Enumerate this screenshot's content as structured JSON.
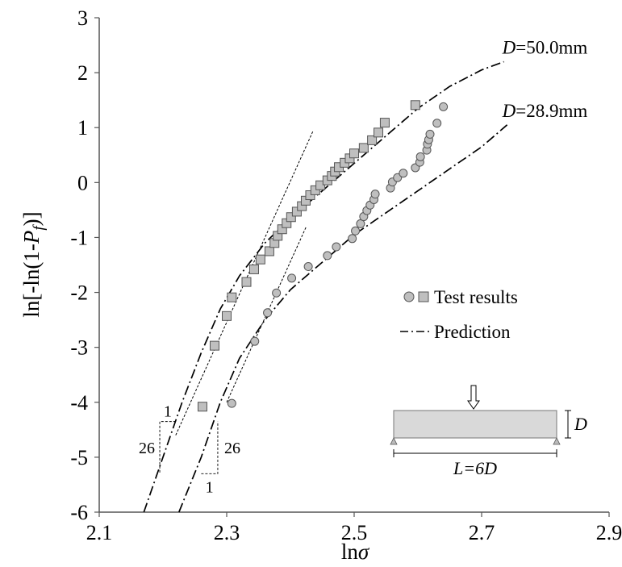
{
  "chart_data": {
    "type": "scatter",
    "xlabel": {
      "prefix": "ln",
      "symbol": "σ"
    },
    "ylabel": {
      "pre": "ln[-ln(1-",
      "var": "P",
      "sub": "f",
      "post": ")]"
    },
    "xlim": [
      2.1,
      2.9
    ],
    "ylim": [
      -6,
      3
    ],
    "x_ticks": [
      "2.1",
      "2.3",
      "2.5",
      "2.7",
      "2.9"
    ],
    "y_ticks": [
      "3",
      "2",
      "1",
      "0",
      "-1",
      "-2",
      "-3",
      "-4",
      "-5",
      "-6"
    ],
    "grid": false,
    "series": [
      {
        "name": "D=50.0mm test results",
        "marker": "square",
        "color": "#bfbfbf",
        "points": [
          [
            2.262,
            -4.08
          ],
          [
            2.281,
            -2.97
          ],
          [
            2.3,
            -2.43
          ],
          [
            2.308,
            -2.09
          ],
          [
            2.331,
            -1.81
          ],
          [
            2.343,
            -1.58
          ],
          [
            2.353,
            -1.4
          ],
          [
            2.367,
            -1.25
          ],
          [
            2.375,
            -1.1
          ],
          [
            2.38,
            -0.97
          ],
          [
            2.387,
            -0.85
          ],
          [
            2.394,
            -0.74
          ],
          [
            2.401,
            -0.63
          ],
          [
            2.41,
            -0.53
          ],
          [
            2.418,
            -0.43
          ],
          [
            2.424,
            -0.33
          ],
          [
            2.431,
            -0.23
          ],
          [
            2.439,
            -0.14
          ],
          [
            2.447,
            -0.05
          ],
          [
            2.458,
            0.04
          ],
          [
            2.465,
            0.12
          ],
          [
            2.47,
            0.2
          ],
          [
            2.476,
            0.28
          ],
          [
            2.485,
            0.36
          ],
          [
            2.493,
            0.44
          ],
          [
            2.5,
            0.53
          ],
          [
            2.515,
            0.63
          ],
          [
            2.528,
            0.77
          ],
          [
            2.538,
            0.91
          ],
          [
            2.548,
            1.09
          ],
          [
            2.596,
            1.41
          ]
        ]
      },
      {
        "name": "D=28.9mm test results",
        "marker": "circle",
        "color": "#bfbfbf",
        "points": [
          [
            2.308,
            -4.02
          ],
          [
            2.344,
            -2.89
          ],
          [
            2.364,
            -2.37
          ],
          [
            2.378,
            -2.01
          ],
          [
            2.402,
            -1.74
          ],
          [
            2.428,
            -1.53
          ],
          [
            2.458,
            -1.33
          ],
          [
            2.472,
            -1.17
          ],
          [
            2.497,
            -1.02
          ],
          [
            2.502,
            -0.88
          ],
          [
            2.51,
            -0.75
          ],
          [
            2.515,
            -0.62
          ],
          [
            2.52,
            -0.51
          ],
          [
            2.525,
            -0.41
          ],
          [
            2.531,
            -0.31
          ],
          [
            2.533,
            -0.21
          ],
          [
            2.557,
            -0.1
          ],
          [
            2.56,
            0.01
          ],
          [
            2.568,
            0.09
          ],
          [
            2.577,
            0.17
          ],
          [
            2.596,
            0.27
          ],
          [
            2.603,
            0.37
          ],
          [
            2.604,
            0.47
          ],
          [
            2.614,
            0.59
          ],
          [
            2.615,
            0.7
          ],
          [
            2.617,
            0.78
          ],
          [
            2.619,
            0.88
          ],
          [
            2.63,
            1.08
          ],
          [
            2.64,
            1.38
          ]
        ]
      },
      {
        "name": "D=50.0mm prediction",
        "style": "dash-dot",
        "points": [
          [
            2.17,
            -6.0
          ],
          [
            2.2,
            -5.0
          ],
          [
            2.23,
            -4.0
          ],
          [
            2.26,
            -3.1
          ],
          [
            2.29,
            -2.3
          ],
          [
            2.32,
            -1.7
          ],
          [
            2.36,
            -1.1
          ],
          [
            2.4,
            -0.65
          ],
          [
            2.45,
            -0.15
          ],
          [
            2.5,
            0.35
          ],
          [
            2.55,
            0.85
          ],
          [
            2.6,
            1.35
          ],
          [
            2.65,
            1.75
          ],
          [
            2.7,
            2.05
          ],
          [
            2.735,
            2.2
          ]
        ]
      },
      {
        "name": "D=28.9mm prediction",
        "style": "dash-dot",
        "points": [
          [
            2.225,
            -6.0
          ],
          [
            2.26,
            -5.0
          ],
          [
            2.29,
            -4.0
          ],
          [
            2.32,
            -3.2
          ],
          [
            2.36,
            -2.5
          ],
          [
            2.4,
            -1.95
          ],
          [
            2.45,
            -1.45
          ],
          [
            2.5,
            -0.95
          ],
          [
            2.55,
            -0.55
          ],
          [
            2.6,
            -0.15
          ],
          [
            2.65,
            0.25
          ],
          [
            2.7,
            0.65
          ],
          [
            2.74,
            1.05
          ]
        ]
      },
      {
        "name": "slope 26 (D=50.0mm)",
        "style": "dotted",
        "points": [
          [
            2.22,
            -4.6
          ],
          [
            2.436,
            0.95
          ]
        ]
      },
      {
        "name": "slope 26 (D=28.9mm)",
        "style": "dotted",
        "points": [
          [
            2.3,
            -4.0
          ],
          [
            2.425,
            -0.8
          ]
        ]
      }
    ],
    "curve_labels": [
      {
        "italic": "D",
        "rest": "=50.0mm",
        "x": 2.735,
        "y": 2.2
      },
      {
        "italic": "D",
        "rest": "=28.9mm",
        "x": 2.735,
        "y": 1.05
      }
    ],
    "slope_triangles": [
      {
        "x0": 2.195,
        "x1": 2.22,
        "y0": -5.3,
        "y1": -4.35,
        "run_label": "1",
        "rise_label": "26",
        "rise_side": "left"
      },
      {
        "x0": 2.26,
        "x1": 2.286,
        "y0": -5.3,
        "y1": -4.35,
        "run_label": "1",
        "rise_label": "26",
        "rise_side": "right"
      }
    ],
    "legend": {
      "position": "lower-right",
      "entries": [
        {
          "label": "Test results",
          "marker": "circle-square"
        },
        {
          "label": "Prediction",
          "marker": "dash-dot"
        }
      ]
    },
    "inset": {
      "load_label": "D",
      "span_label": "L=6D"
    }
  }
}
